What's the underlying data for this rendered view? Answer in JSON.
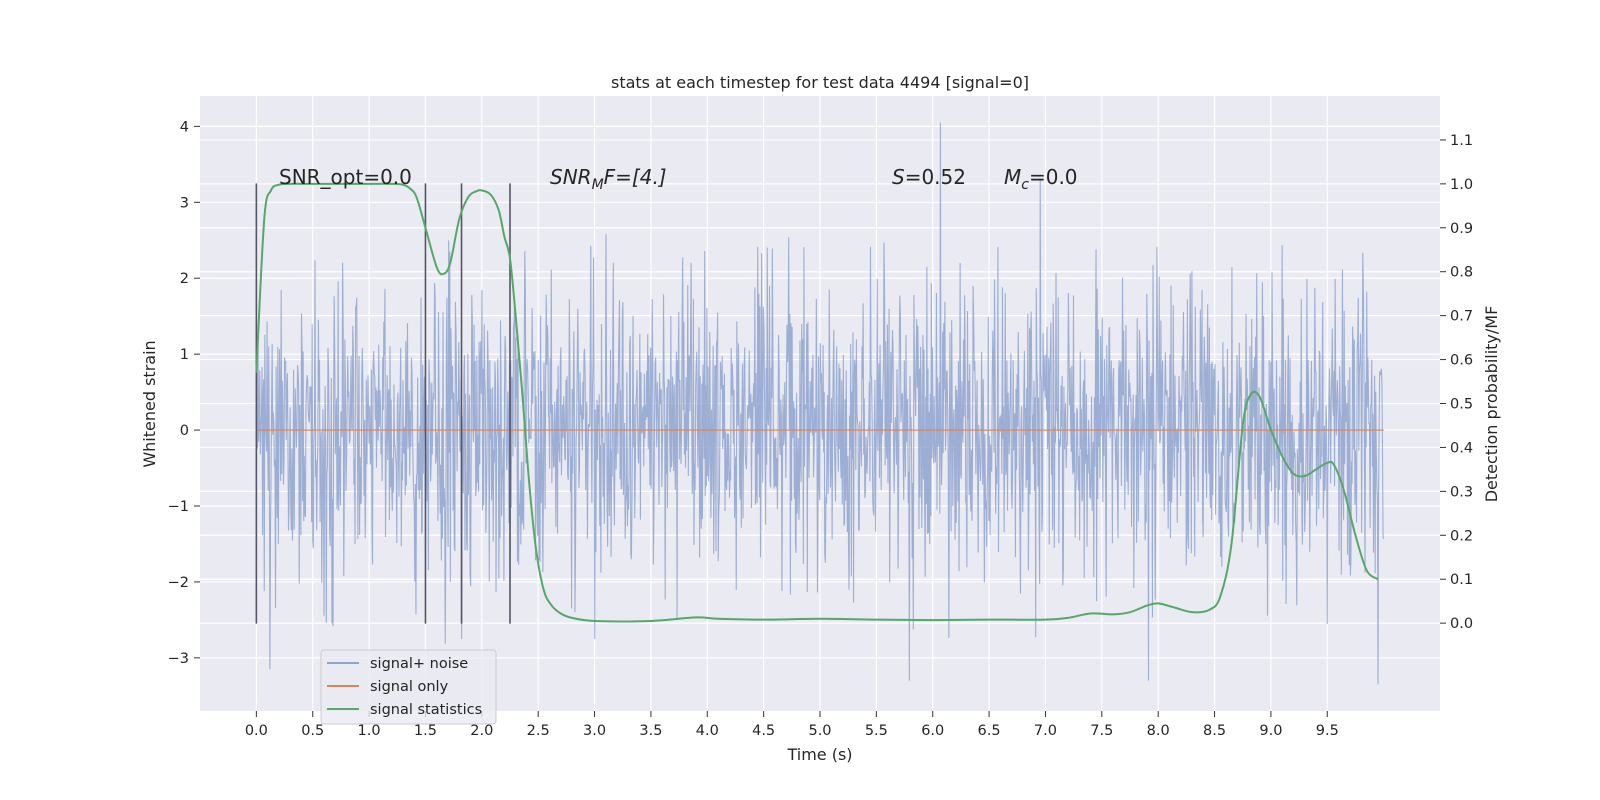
{
  "chart_data": {
    "type": "line",
    "title": "stats at each timestep for test data 4494 [signal=0]",
    "xlabel": "Time (s)",
    "ylabel": "Whitened strain",
    "y2label": "Detection probability/MF",
    "xlim": [
      -0.5,
      10.5
    ],
    "ylim": [
      -3.7,
      4.4
    ],
    "y2lim": [
      -0.2,
      1.2
    ],
    "x_ticks": [
      "0.0",
      "0.5",
      "1.0",
      "1.5",
      "2.0",
      "2.5",
      "3.0",
      "3.5",
      "4.0",
      "4.5",
      "5.0",
      "5.5",
      "6.0",
      "6.5",
      "7.0",
      "7.5",
      "8.0",
      "8.5",
      "9.0",
      "9.5"
    ],
    "y_ticks": [
      "−3",
      "−2",
      "−1",
      "0",
      "1",
      "2",
      "3",
      "4"
    ],
    "y2_ticks": [
      "0.0",
      "0.1",
      "0.2",
      "0.3",
      "0.4",
      "0.5",
      "0.6",
      "0.7",
      "0.8",
      "0.9",
      "1.0",
      "1.1"
    ],
    "grid": true,
    "legend_position": "lower-left",
    "annotations": {
      "snr_opt": "SNR_opt=0.0",
      "snr_mf_base": "SNR",
      "snr_mf_sub": "M",
      "snr_mf_rest": "F=[4.]",
      "s_label": "S",
      "s_value": "=0.52",
      "mc_base": "M",
      "mc_sub": "c",
      "mc_value": "=0.0"
    },
    "markers_x": [
      0.0,
      1.5,
      1.82,
      2.25
    ],
    "marker_yrange": [
      -2.55,
      3.25
    ],
    "series": [
      {
        "name": "signal+ noise",
        "color": "#8fa3cf",
        "t_range": [
          0.0,
          10.0
        ],
        "n_samples": 2000,
        "sigma": 0.95,
        "extreme_points": [
          [
            6.07,
            4.05
          ],
          [
            9.95,
            -3.35
          ],
          [
            0.12,
            -3.15
          ],
          [
            3.0,
            -2.75
          ]
        ]
      },
      {
        "name": "signal only",
        "color": "#dd8452",
        "x": [
          0.0,
          10.0
        ],
        "y": [
          0.0,
          0.0
        ]
      },
      {
        "name": "signal statistics",
        "color": "#55a868",
        "axis": "right",
        "x": [
          0.0,
          0.07,
          0.13,
          0.2,
          0.3,
          0.5,
          0.8,
          1.0,
          1.2,
          1.3,
          1.36,
          1.42,
          1.5,
          1.6,
          1.66,
          1.72,
          1.8,
          1.88,
          1.95,
          2.0,
          2.08,
          2.15,
          2.2,
          2.25,
          2.3,
          2.36,
          2.42,
          2.48,
          2.55,
          2.62,
          2.7,
          2.8,
          3.0,
          3.5,
          3.9,
          4.1,
          4.5,
          5.0,
          5.5,
          6.0,
          6.5,
          7.0,
          7.2,
          7.4,
          7.6,
          7.75,
          7.9,
          8.0,
          8.15,
          8.3,
          8.45,
          8.55,
          8.65,
          8.75,
          8.82,
          8.9,
          9.0,
          9.1,
          9.2,
          9.3,
          9.4,
          9.5,
          9.56,
          9.65,
          9.75,
          9.85,
          9.95
        ],
        "y": [
          0.57,
          0.92,
          0.985,
          0.998,
          1.0,
          1.0,
          1.0,
          1.0,
          1.0,
          0.998,
          0.99,
          0.97,
          0.9,
          0.81,
          0.795,
          0.82,
          0.92,
          0.97,
          0.983,
          0.985,
          0.975,
          0.94,
          0.88,
          0.83,
          0.7,
          0.52,
          0.32,
          0.17,
          0.075,
          0.04,
          0.022,
          0.012,
          0.005,
          0.005,
          0.013,
          0.01,
          0.008,
          0.01,
          0.008,
          0.007,
          0.008,
          0.008,
          0.012,
          0.022,
          0.02,
          0.025,
          0.04,
          0.045,
          0.035,
          0.025,
          0.03,
          0.06,
          0.18,
          0.45,
          0.52,
          0.515,
          0.44,
          0.38,
          0.34,
          0.335,
          0.35,
          0.365,
          0.36,
          0.3,
          0.2,
          0.12,
          0.1
        ]
      }
    ]
  }
}
